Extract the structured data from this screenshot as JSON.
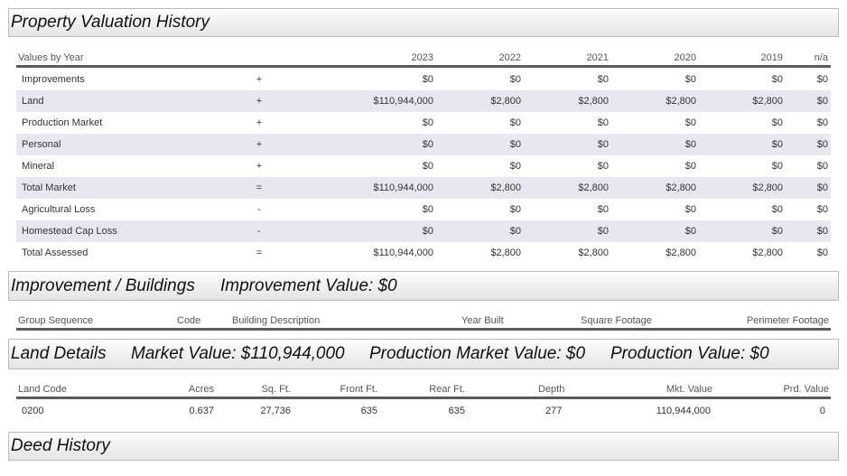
{
  "valuation": {
    "title": "Property Valuation History",
    "header": [
      "Values by Year",
      "2023",
      "2022",
      "2021",
      "2020",
      "2019",
      "n/a"
    ],
    "rows": [
      [
        "Improvements",
        "+",
        "$0",
        "$0",
        "$0",
        "$0",
        "$0",
        "$0"
      ],
      [
        "Land",
        "+",
        "$110,944,000",
        "$2,800",
        "$2,800",
        "$2,800",
        "$2,800",
        "$0"
      ],
      [
        "Production Market",
        "+",
        "$0",
        "$0",
        "$0",
        "$0",
        "$0",
        "$0"
      ],
      [
        "Personal",
        "+",
        "$0",
        "$0",
        "$0",
        "$0",
        "$0",
        "$0"
      ],
      [
        "Mineral",
        "+",
        "$0",
        "$0",
        "$0",
        "$0",
        "$0",
        "$0"
      ],
      [
        "Total Market",
        "=",
        "$110,944,000",
        "$2,800",
        "$2,800",
        "$2,800",
        "$2,800",
        "$0"
      ],
      [
        "Agricultural Loss",
        "-",
        "$0",
        "$0",
        "$0",
        "$0",
        "$0",
        "$0"
      ],
      [
        "Homestead Cap Loss",
        "-",
        "$0",
        "$0",
        "$0",
        "$0",
        "$0",
        "$0"
      ],
      [
        "Total Assessed",
        "=",
        "$110,944,000",
        "$2,800",
        "$2,800",
        "$2,800",
        "$2,800",
        "$0"
      ]
    ]
  },
  "improvements": {
    "title": "Improvement / Buildings",
    "value": "Improvement Value: $0",
    "columns": [
      "Group Sequence",
      "Code",
      "Building Description",
      "Year Built",
      "Square Footage",
      "Perimeter Footage"
    ]
  },
  "land": {
    "title": "Land Details",
    "market_value": "Market Value: $110,944,000",
    "production_market_value": "Production Market Value: $0",
    "production_value": "Production Value: $0",
    "columns": [
      "Land Code",
      "Acres",
      "Sq. Ft.",
      "Front Ft.",
      "Rear Ft.",
      "Depth",
      "Mkt. Value",
      "Prd. Value"
    ],
    "rows": [
      [
        "0200",
        "0.637",
        "27,736",
        "635",
        "635",
        "277",
        "110,944,000",
        "0"
      ]
    ]
  },
  "deed": {
    "title": "Deed History"
  }
}
